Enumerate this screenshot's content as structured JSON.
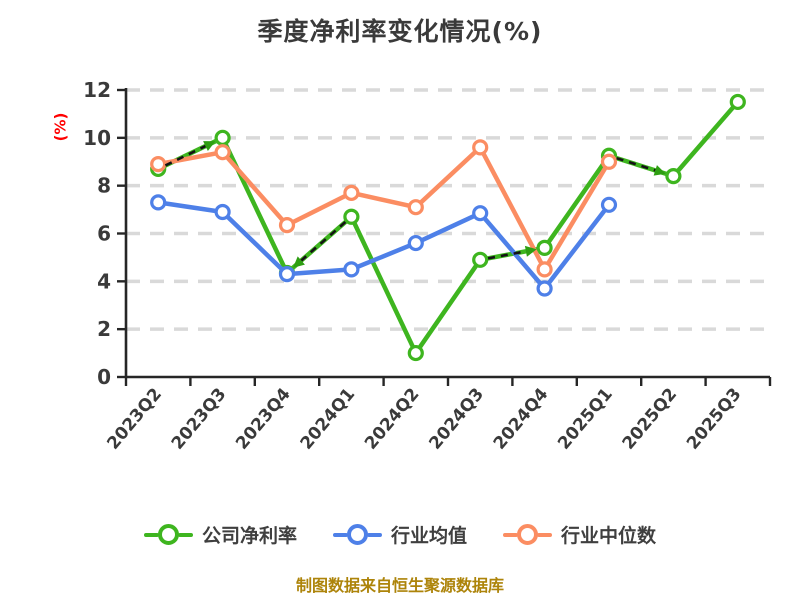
{
  "chart_data": {
    "type": "line",
    "title": "季度净利率变化情况(%)",
    "ylabel": "(%)",
    "caption": "制图数据来自恒生聚源数据库",
    "categories": [
      "2023Q2",
      "2023Q3",
      "2023Q4",
      "2024Q1",
      "2024Q2",
      "2024Q3",
      "2024Q4",
      "2025Q1",
      "2025Q2",
      "2025Q3"
    ],
    "series": [
      {
        "name": "公司净利率",
        "color": "#3EB51F",
        "values": [
          8.7,
          10.0,
          4.35,
          6.7,
          1.0,
          4.9,
          5.4,
          9.25,
          8.4,
          11.5
        ]
      },
      {
        "name": "行业均值",
        "color": "#4E80E8",
        "values": [
          7.3,
          6.9,
          4.3,
          4.5,
          5.6,
          6.85,
          3.7,
          7.2,
          null,
          null
        ]
      },
      {
        "name": "行业中位数",
        "color": "#FB8D62",
        "values": [
          8.9,
          9.4,
          6.35,
          7.7,
          7.1,
          9.6,
          4.5,
          9.0,
          null,
          null
        ]
      }
    ],
    "trend_arrows": [
      {
        "from": "2023Q2",
        "to": "2023Q3"
      },
      {
        "from": "2024Q1",
        "to": "2023Q4"
      },
      {
        "from": "2024Q3",
        "to": "2024Q4"
      },
      {
        "from": "2025Q1",
        "to": "2025Q2"
      }
    ],
    "ylim": [
      0,
      12
    ],
    "yticks": [
      0,
      2,
      4,
      6,
      8,
      10,
      12
    ],
    "grid": "dashed-horizontal",
    "legend_position": "bottom",
    "colors": {
      "title": "#3A3A3A",
      "tick": "#3A3A3A",
      "legend_text": "#3F3F3F",
      "grid": "#D9D9D9",
      "axis": "#262626",
      "ylabel": "#FF0000",
      "caption": "#AD840A",
      "arrow_overlay": "#141414",
      "arrowhead": "#2E9E12",
      "marker_fill": "#FFFFFF"
    }
  }
}
